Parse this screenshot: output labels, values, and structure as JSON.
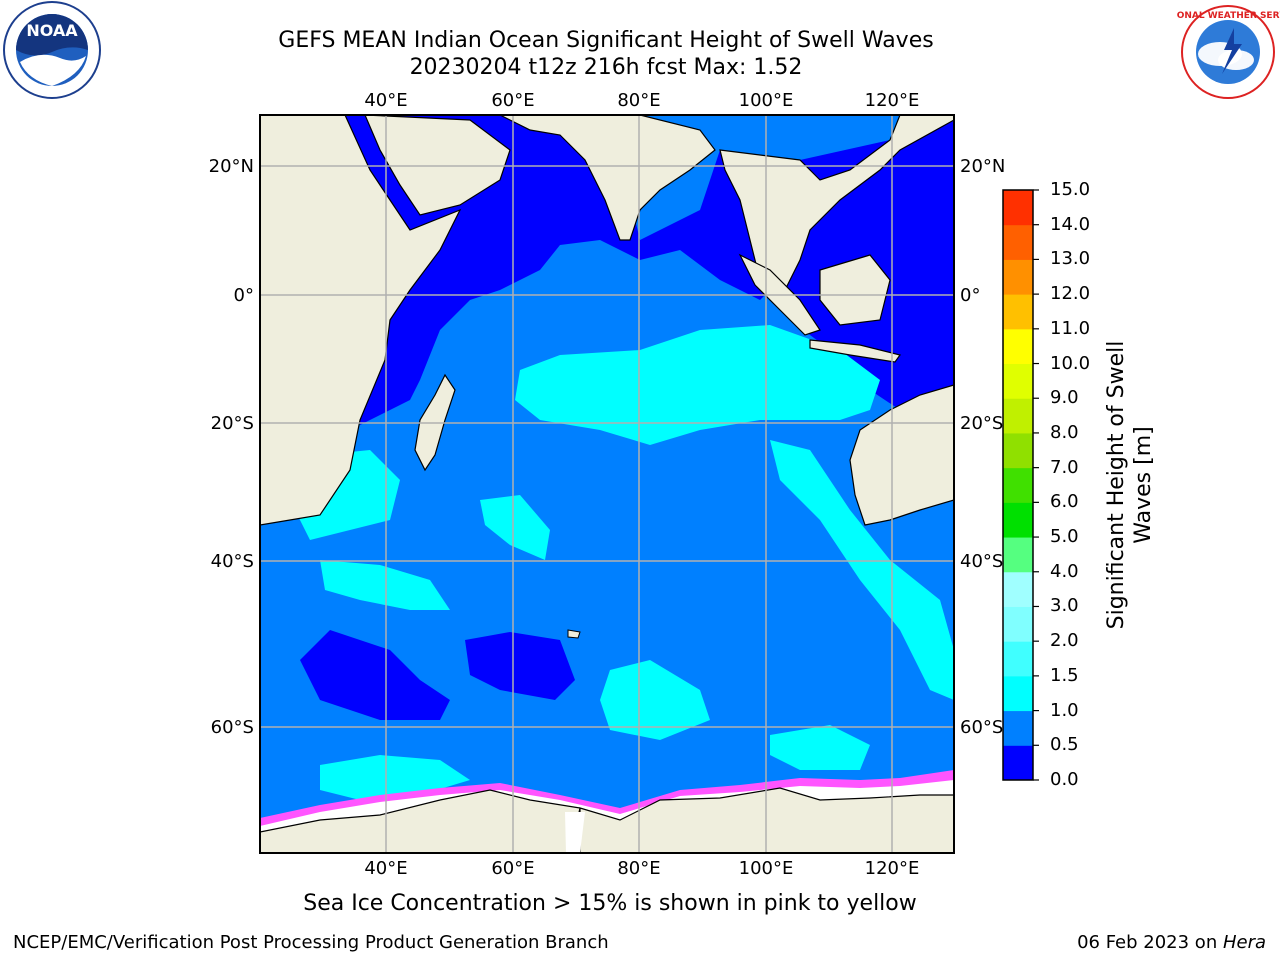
{
  "title": {
    "line1": "GEFS MEAN Indian Ocean Significant Height of Swell Waves",
    "line2": "20230204 t12z 216h fcst   Max: 1.52"
  },
  "logos": {
    "left": {
      "icon": "noaa-logo-icon",
      "text": "NOAA"
    },
    "right": {
      "icon": "nws-logo-icon",
      "text": "NATIONAL WEATHER SERVICE"
    }
  },
  "map": {
    "lon_labels": [
      "40°E",
      "60°E",
      "80°E",
      "100°E",
      "120°E"
    ],
    "lat_labels": [
      "20°N",
      "0°",
      "20°S",
      "40°S",
      "60°S"
    ],
    "colors": {
      "land": "#efeedd",
      "ocean_low": "#0000ff",
      "ocean_mid": "#0080ff",
      "ocean_high": "#00ffff",
      "ice_pink": "#ff55ff",
      "ice_white": "#ffffff",
      "grid": "#b0b0b0"
    }
  },
  "colorbar": {
    "ticks": [
      "0.0",
      "0.5",
      "1.0",
      "1.5",
      "2.0",
      "3.0",
      "4.0",
      "5.0",
      "6.0",
      "7.0",
      "8.0",
      "9.0",
      "10.0",
      "11.0",
      "12.0",
      "13.0",
      "14.0",
      "15.0"
    ],
    "colors": [
      "#0000ff",
      "#0080ff",
      "#00ffff",
      "#40ffff",
      "#80ffff",
      "#a0ffff",
      "#55ff80",
      "#00e000",
      "#40e000",
      "#90e000",
      "#c0f000",
      "#e0ff00",
      "#ffff00",
      "#ffc000",
      "#ff9000",
      "#ff6000",
      "#ff3000",
      "#ff0000"
    ],
    "label": "Significant Height of Swell Waves [m]"
  },
  "caption": "Sea Ice Concentration > 15% is shown in pink to yellow",
  "footer": {
    "left": "NCEP/EMC/Verification Post Processing Product Generation Branch",
    "date": "06 Feb 2023 on ",
    "host": "Hera"
  }
}
